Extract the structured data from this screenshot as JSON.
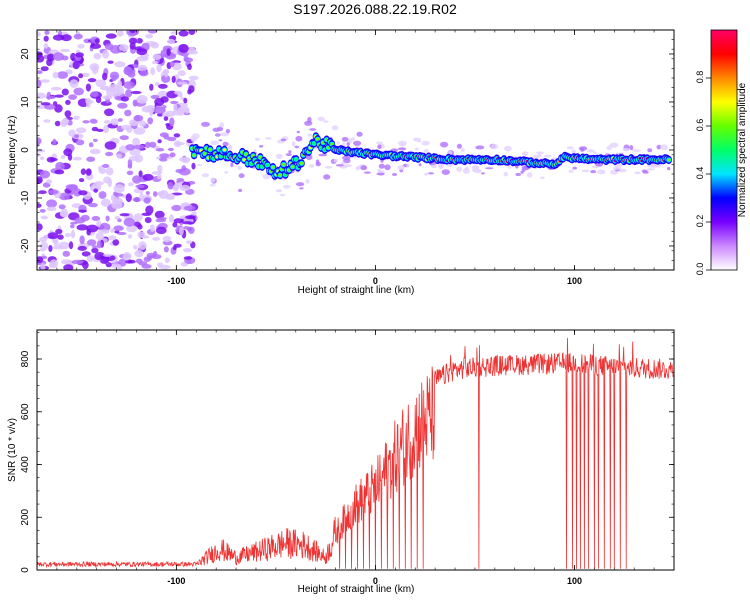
{
  "title": "S197.2026.088.22.19.R02",
  "chart_data": [
    {
      "type": "heatmap",
      "xlabel": "Height of straight line (km)",
      "ylabel": "Frequency (Hz)",
      "xlim": [
        -170,
        150
      ],
      "ylim": [
        -25,
        25
      ],
      "xticks": [
        -100,
        0,
        100
      ],
      "xtick_labels": [
        "-100",
        "0",
        "100"
      ],
      "yticks": [
        -20,
        -10,
        0,
        10,
        20
      ],
      "ytick_labels": [
        "-20",
        "-10",
        "0",
        "10",
        "20"
      ],
      "noise_region_x": [
        -170,
        -95
      ],
      "ridge": [
        {
          "x": -92,
          "y": 0
        },
        {
          "x": -75,
          "y": -1
        },
        {
          "x": -60,
          "y": -2
        },
        {
          "x": -50,
          "y": -5
        },
        {
          "x": -40,
          "y": -3
        },
        {
          "x": -30,
          "y": 2
        },
        {
          "x": -20,
          "y": 0
        },
        {
          "x": -10,
          "y": -0.5
        },
        {
          "x": 0,
          "y": -1
        },
        {
          "x": 20,
          "y": -1.5
        },
        {
          "x": 40,
          "y": -2
        },
        {
          "x": 60,
          "y": -2
        },
        {
          "x": 75,
          "y": -2.5
        },
        {
          "x": 90,
          "y": -3
        },
        {
          "x": 95,
          "y": -1.5
        },
        {
          "x": 110,
          "y": -2
        },
        {
          "x": 130,
          "y": -2
        },
        {
          "x": 148,
          "y": -2
        }
      ],
      "colorbar": {
        "label": "Normalized spectral amplitude",
        "range": [
          0,
          1
        ],
        "ticks": [
          0.0,
          0.2,
          0.4,
          0.6,
          0.8
        ],
        "tick_labels": [
          "0.0",
          "0.2",
          "0.4",
          "0.6",
          "0.8"
        ],
        "colors": [
          "#ffffff",
          "#cc88ff",
          "#7700ff",
          "#0000ff",
          "#00e5ff",
          "#00ff66",
          "#66ff00",
          "#ffff00",
          "#ff8800",
          "#ff0000",
          "#ff0066"
        ]
      }
    },
    {
      "type": "line",
      "xlabel": "Height of straight line (km)",
      "ylabel": "SNR (10 * v/v)",
      "xlim": [
        -170,
        150
      ],
      "ylim": [
        0,
        910
      ],
      "xticks": [
        -100,
        0,
        100
      ],
      "xtick_labels": [
        "-100",
        "0",
        "100"
      ],
      "yticks": [
        0,
        200,
        400,
        600,
        800
      ],
      "ytick_labels": [
        "0",
        "200",
        "400",
        "600",
        "800"
      ],
      "series": [
        {
          "name": "SNR",
          "color": "#ee3333",
          "envelope": [
            {
              "x": -170,
              "y": 22
            },
            {
              "x": -90,
              "y": 22
            },
            {
              "x": -85,
              "y": 55
            },
            {
              "x": -78,
              "y": 95
            },
            {
              "x": -70,
              "y": 55
            },
            {
              "x": -60,
              "y": 80
            },
            {
              "x": -45,
              "y": 120
            },
            {
              "x": -35,
              "y": 110
            },
            {
              "x": -25,
              "y": 55
            },
            {
              "x": -18,
              "y": 200
            },
            {
              "x": -10,
              "y": 300
            },
            {
              "x": 0,
              "y": 380
            },
            {
              "x": 10,
              "y": 520
            },
            {
              "x": 20,
              "y": 650
            },
            {
              "x": 30,
              "y": 720
            },
            {
              "x": 40,
              "y": 760
            },
            {
              "x": 60,
              "y": 775
            },
            {
              "x": 80,
              "y": 780
            },
            {
              "x": 100,
              "y": 785
            },
            {
              "x": 120,
              "y": 770
            },
            {
              "x": 150,
              "y": 760
            }
          ],
          "dropouts_x": [
            -18,
            -15,
            -12,
            -9,
            -6,
            -3,
            0,
            3,
            6,
            9,
            12,
            15,
            18,
            21,
            24,
            52,
            96,
            99,
            101,
            103,
            105,
            107,
            110,
            112,
            115,
            118,
            120,
            123,
            126
          ]
        }
      ]
    }
  ]
}
